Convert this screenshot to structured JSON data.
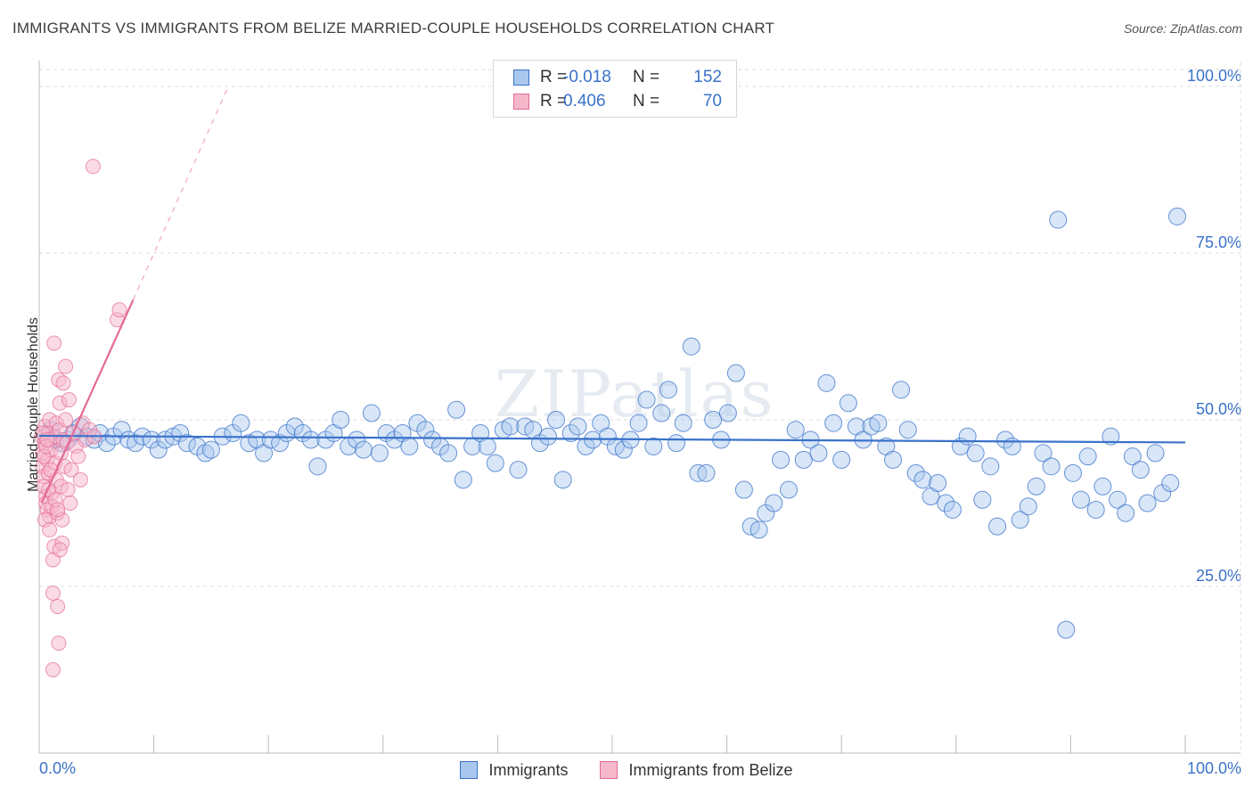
{
  "title": "IMMIGRANTS VS IMMIGRANTS FROM BELIZE MARRIED-COUPLE HOUSEHOLDS CORRELATION CHART",
  "source": "Source: ZipAtlas.com",
  "watermark": "ZIPatlas",
  "colors": {
    "blue": "#3a72c9",
    "blue_fill": "#a9c7ee",
    "pink": "#e56a96",
    "pink_fill": "#f6b7cb",
    "grid": "#dddddd"
  },
  "legend": {
    "rows": [
      {
        "series": "Immigrants",
        "r_label": "R =",
        "r_value": "-0.018",
        "n_label": "N =",
        "n_value": "152"
      },
      {
        "series": "Immigrants from Belize",
        "r_label": "R =",
        "r_value": "0.406",
        "n_label": "N =",
        "n_value": "70"
      }
    ]
  },
  "chart_data": {
    "type": "scatter",
    "title": "IMMIGRANTS VS IMMIGRANTS FROM BELIZE MARRIED-COUPLE HOUSEHOLDS CORRELATION CHART",
    "xlabel": "",
    "ylabel": "Married-couple Households",
    "xlim": [
      0,
      100
    ],
    "ylim": [
      0,
      104
    ],
    "x_tick_labels": [
      "0.0%",
      "100.0%"
    ],
    "y_tick_labels": [
      "25.0%",
      "50.0%",
      "75.0%",
      "100.0%"
    ],
    "y_ticks": [
      25,
      50,
      75,
      100
    ],
    "grid": true,
    "legend_position": "bottom-center",
    "series": [
      {
        "name": "Immigrants",
        "r": -0.018,
        "n": 152,
        "trend": {
          "x0": 0,
          "y0": 47.6,
          "x1": 100,
          "y1": 46.6
        },
        "points": [
          [
            0.6,
            47.5
          ],
          [
            1.0,
            48.5
          ],
          [
            1.4,
            47.0
          ],
          [
            2.0,
            46.5
          ],
          [
            2.5,
            47.0
          ],
          [
            3.0,
            48.0
          ],
          [
            3.6,
            49.0
          ],
          [
            4.2,
            47.5
          ],
          [
            4.8,
            47.0
          ],
          [
            5.3,
            48.0
          ],
          [
            5.9,
            46.5
          ],
          [
            6.5,
            47.5
          ],
          [
            7.2,
            48.5
          ],
          [
            7.8,
            47.0
          ],
          [
            8.4,
            46.5
          ],
          [
            9.0,
            47.5
          ],
          [
            9.8,
            47.0
          ],
          [
            10.4,
            45.5
          ],
          [
            11.0,
            47.0
          ],
          [
            11.7,
            47.5
          ],
          [
            12.3,
            48.0
          ],
          [
            12.9,
            46.5
          ],
          [
            13.8,
            46.0
          ],
          [
            14.5,
            45.0
          ],
          [
            15.0,
            45.5
          ],
          [
            16.0,
            47.5
          ],
          [
            16.9,
            48.0
          ],
          [
            17.6,
            49.5
          ],
          [
            18.3,
            46.5
          ],
          [
            19.0,
            47.0
          ],
          [
            19.6,
            45.0
          ],
          [
            20.2,
            47.0
          ],
          [
            21.0,
            46.5
          ],
          [
            21.6,
            48.0
          ],
          [
            22.3,
            49.0
          ],
          [
            23.0,
            48.0
          ],
          [
            23.7,
            47.0
          ],
          [
            24.3,
            43.0
          ],
          [
            25.0,
            47.0
          ],
          [
            25.7,
            48.0
          ],
          [
            26.3,
            50.0
          ],
          [
            27.0,
            46.0
          ],
          [
            27.7,
            47.0
          ],
          [
            28.3,
            45.5
          ],
          [
            29.0,
            51.0
          ],
          [
            29.7,
            45.0
          ],
          [
            30.3,
            48.0
          ],
          [
            31.0,
            47.0
          ],
          [
            31.7,
            48.0
          ],
          [
            32.3,
            46.0
          ],
          [
            33.0,
            49.5
          ],
          [
            33.7,
            48.5
          ],
          [
            34.3,
            47.0
          ],
          [
            35.0,
            46.0
          ],
          [
            35.7,
            45.0
          ],
          [
            36.4,
            51.5
          ],
          [
            37.0,
            41.0
          ],
          [
            37.8,
            46.0
          ],
          [
            38.5,
            48.0
          ],
          [
            39.1,
            46.0
          ],
          [
            39.8,
            43.5
          ],
          [
            40.5,
            48.5
          ],
          [
            41.1,
            49.0
          ],
          [
            41.8,
            42.5
          ],
          [
            42.4,
            49.0
          ],
          [
            43.1,
            48.5
          ],
          [
            43.7,
            46.5
          ],
          [
            44.4,
            47.5
          ],
          [
            45.1,
            50.0
          ],
          [
            45.7,
            41.0
          ],
          [
            46.4,
            48.0
          ],
          [
            47.0,
            49.0
          ],
          [
            47.7,
            46.0
          ],
          [
            48.3,
            47.0
          ],
          [
            49.0,
            49.5
          ],
          [
            49.6,
            47.5
          ],
          [
            50.3,
            46.0
          ],
          [
            51.0,
            45.5
          ],
          [
            51.6,
            47.0
          ],
          [
            52.3,
            49.5
          ],
          [
            53.0,
            53.0
          ],
          [
            53.6,
            46.0
          ],
          [
            54.3,
            51.0
          ],
          [
            54.9,
            54.5
          ],
          [
            55.6,
            46.5
          ],
          [
            56.2,
            49.5
          ],
          [
            56.9,
            61.0
          ],
          [
            57.5,
            42.0
          ],
          [
            58.2,
            42.0
          ],
          [
            58.8,
            50.0
          ],
          [
            59.5,
            47.0
          ],
          [
            60.1,
            51.0
          ],
          [
            60.8,
            57.0
          ],
          [
            61.5,
            39.5
          ],
          [
            62.1,
            34.0
          ],
          [
            62.8,
            33.5
          ],
          [
            63.4,
            36.0
          ],
          [
            64.1,
            37.5
          ],
          [
            64.7,
            44.0
          ],
          [
            65.4,
            39.5
          ],
          [
            66.0,
            48.5
          ],
          [
            66.7,
            44.0
          ],
          [
            67.3,
            47.0
          ],
          [
            68.0,
            45.0
          ],
          [
            68.7,
            55.5
          ],
          [
            69.3,
            49.5
          ],
          [
            70.0,
            44.0
          ],
          [
            70.6,
            52.5
          ],
          [
            71.3,
            49.0
          ],
          [
            71.9,
            47.0
          ],
          [
            72.6,
            49.0
          ],
          [
            73.2,
            49.5
          ],
          [
            73.9,
            46.0
          ],
          [
            74.5,
            44.0
          ],
          [
            75.2,
            54.5
          ],
          [
            75.8,
            48.5
          ],
          [
            76.5,
            42.0
          ],
          [
            77.1,
            41.0
          ],
          [
            77.8,
            38.5
          ],
          [
            78.4,
            40.5
          ],
          [
            79.1,
            37.5
          ],
          [
            79.7,
            36.5
          ],
          [
            80.4,
            46.0
          ],
          [
            81.0,
            47.5
          ],
          [
            81.7,
            45.0
          ],
          [
            82.3,
            38.0
          ],
          [
            83.0,
            43.0
          ],
          [
            83.6,
            34.0
          ],
          [
            84.3,
            47.0
          ],
          [
            84.9,
            46.0
          ],
          [
            85.6,
            35.0
          ],
          [
            86.3,
            37.0
          ],
          [
            87.0,
            40.0
          ],
          [
            87.6,
            45.0
          ],
          [
            88.3,
            43.0
          ],
          [
            88.9,
            80.0
          ],
          [
            89.6,
            18.5
          ],
          [
            90.2,
            42.0
          ],
          [
            90.9,
            38.0
          ],
          [
            91.5,
            44.5
          ],
          [
            92.2,
            36.5
          ],
          [
            92.8,
            40.0
          ],
          [
            93.5,
            47.5
          ],
          [
            94.1,
            38.0
          ],
          [
            94.8,
            36.0
          ],
          [
            95.4,
            44.5
          ],
          [
            96.1,
            42.5
          ],
          [
            96.7,
            37.5
          ],
          [
            97.4,
            45.0
          ],
          [
            98.0,
            39.0
          ],
          [
            98.7,
            40.5
          ],
          [
            99.3,
            80.5
          ]
        ]
      },
      {
        "name": "Immigrants from Belize",
        "r": 0.406,
        "n": 70,
        "trend": {
          "x0": 0.2,
          "y0": 37.5,
          "x1": 8.2,
          "y1": 68.0
        },
        "trend_dashed": {
          "x0": 8.2,
          "y0": 68.0,
          "x1": 16.5,
          "y1": 100.0
        },
        "points": [
          [
            0.2,
            47.5
          ],
          [
            0.3,
            45.0
          ],
          [
            0.3,
            43.0
          ],
          [
            0.4,
            41.5
          ],
          [
            0.4,
            40.0
          ],
          [
            0.5,
            49.0
          ],
          [
            0.5,
            46.5
          ],
          [
            0.6,
            38.5
          ],
          [
            0.6,
            37.5
          ],
          [
            0.7,
            36.5
          ],
          [
            0.7,
            44.0
          ],
          [
            0.8,
            42.0
          ],
          [
            0.8,
            48.0
          ],
          [
            0.9,
            35.5
          ],
          [
            0.9,
            50.0
          ],
          [
            1.0,
            47.0
          ],
          [
            1.0,
            45.5
          ],
          [
            1.1,
            39.0
          ],
          [
            1.1,
            37.0
          ],
          [
            1.2,
            29.0
          ],
          [
            1.2,
            24.0
          ],
          [
            1.3,
            61.5
          ],
          [
            1.3,
            31.0
          ],
          [
            1.4,
            47.5
          ],
          [
            1.4,
            43.5
          ],
          [
            1.5,
            49.5
          ],
          [
            1.5,
            41.0
          ],
          [
            1.6,
            36.0
          ],
          [
            1.6,
            22.0
          ],
          [
            1.7,
            16.5
          ],
          [
            1.7,
            56.0
          ],
          [
            1.8,
            52.5
          ],
          [
            1.8,
            48.5
          ],
          [
            1.9,
            45.0
          ],
          [
            1.9,
            40.0
          ],
          [
            2.0,
            35.0
          ],
          [
            2.0,
            31.5
          ],
          [
            2.1,
            55.5
          ],
          [
            2.1,
            47.0
          ],
          [
            2.2,
            43.0
          ],
          [
            2.3,
            58.0
          ],
          [
            2.3,
            50.0
          ],
          [
            2.4,
            46.5
          ],
          [
            2.5,
            39.5
          ],
          [
            2.6,
            53.0
          ],
          [
            2.7,
            37.5
          ],
          [
            2.8,
            42.5
          ],
          [
            3.0,
            48.0
          ],
          [
            3.2,
            46.0
          ],
          [
            3.4,
            44.5
          ],
          [
            3.6,
            41.0
          ],
          [
            3.8,
            49.5
          ],
          [
            4.0,
            47.0
          ],
          [
            4.4,
            48.5
          ],
          [
            4.8,
            47.5
          ],
          [
            4.7,
            88.0
          ],
          [
            6.8,
            65.0
          ],
          [
            7.0,
            66.5
          ],
          [
            0.4,
            44.5
          ],
          [
            0.6,
            46.0
          ],
          [
            0.8,
            39.5
          ],
          [
            1.0,
            42.5
          ],
          [
            1.2,
            12.5
          ],
          [
            1.4,
            38.0
          ],
          [
            1.6,
            36.5
          ],
          [
            1.8,
            30.5
          ],
          [
            0.3,
            48.0
          ],
          [
            0.5,
            35.0
          ],
          [
            0.7,
            47.0
          ],
          [
            0.9,
            33.5
          ]
        ]
      }
    ]
  }
}
